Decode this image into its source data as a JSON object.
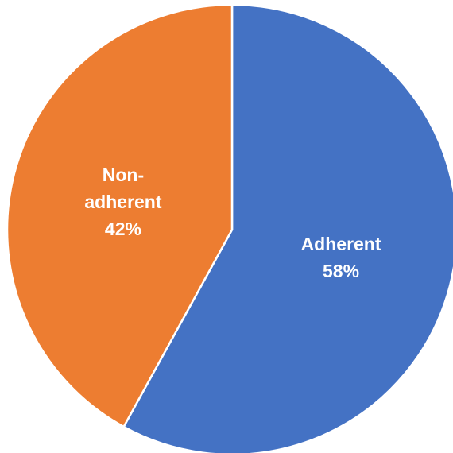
{
  "chart_data": {
    "type": "pie",
    "categories": [
      "Adherent",
      "Non-adherent"
    ],
    "values": [
      58,
      42
    ],
    "value_labels": [
      "58%",
      "42%"
    ],
    "colors": [
      "#4472c4",
      "#ed7d31"
    ]
  }
}
